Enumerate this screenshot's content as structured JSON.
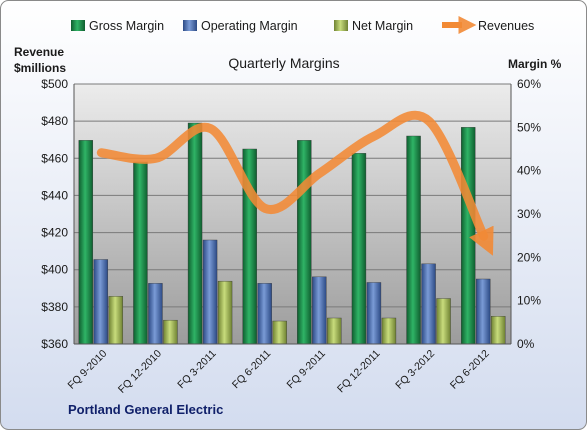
{
  "chart_data": {
    "type": "bar",
    "title": "Quarterly Margins",
    "left_axis_label": [
      "Revenue",
      "$millions"
    ],
    "right_axis_label": "Margin %",
    "footer": "Portland General Electric",
    "categories": [
      "FQ 9-2010",
      "FQ 12-2010",
      "FQ 3-2011",
      "FQ 6-2011",
      "FQ 9-2011",
      "FQ 12-2011",
      "FQ 3-2012",
      "FQ 6-2012"
    ],
    "left_axis": {
      "min": 360,
      "max": 500,
      "step": 20,
      "tick_labels": [
        "$360",
        "$380",
        "$400",
        "$420",
        "$440",
        "$460",
        "$480",
        "$500"
      ]
    },
    "right_axis": {
      "min": 0,
      "max": 60,
      "step": 10,
      "tick_labels": [
        "0%",
        "10%",
        "20%",
        "30%",
        "40%",
        "50%",
        "60%"
      ]
    },
    "series": [
      {
        "name": "Gross Margin",
        "kind": "bar",
        "axis": "right",
        "color": "#1e8a4a",
        "values": [
          47,
          42,
          51,
          45,
          47,
          44,
          48,
          50
        ]
      },
      {
        "name": "Operating Margin",
        "kind": "bar",
        "axis": "right",
        "color": "#4a6fb0",
        "values": [
          19.5,
          14,
          24,
          14,
          15.5,
          14.2,
          18.5,
          15
        ]
      },
      {
        "name": "Net Margin",
        "kind": "bar",
        "axis": "right",
        "color": "#a3b85a",
        "values": [
          11,
          5.5,
          14.5,
          5.3,
          6,
          6,
          10.5,
          6.4
        ]
      },
      {
        "name": "Revenues",
        "kind": "line",
        "axis": "left",
        "color": "#f28a35",
        "values": [
          463,
          460,
          476,
          433,
          452,
          472,
          480,
          418
        ]
      }
    ],
    "grid": true,
    "legend_position": "top"
  }
}
